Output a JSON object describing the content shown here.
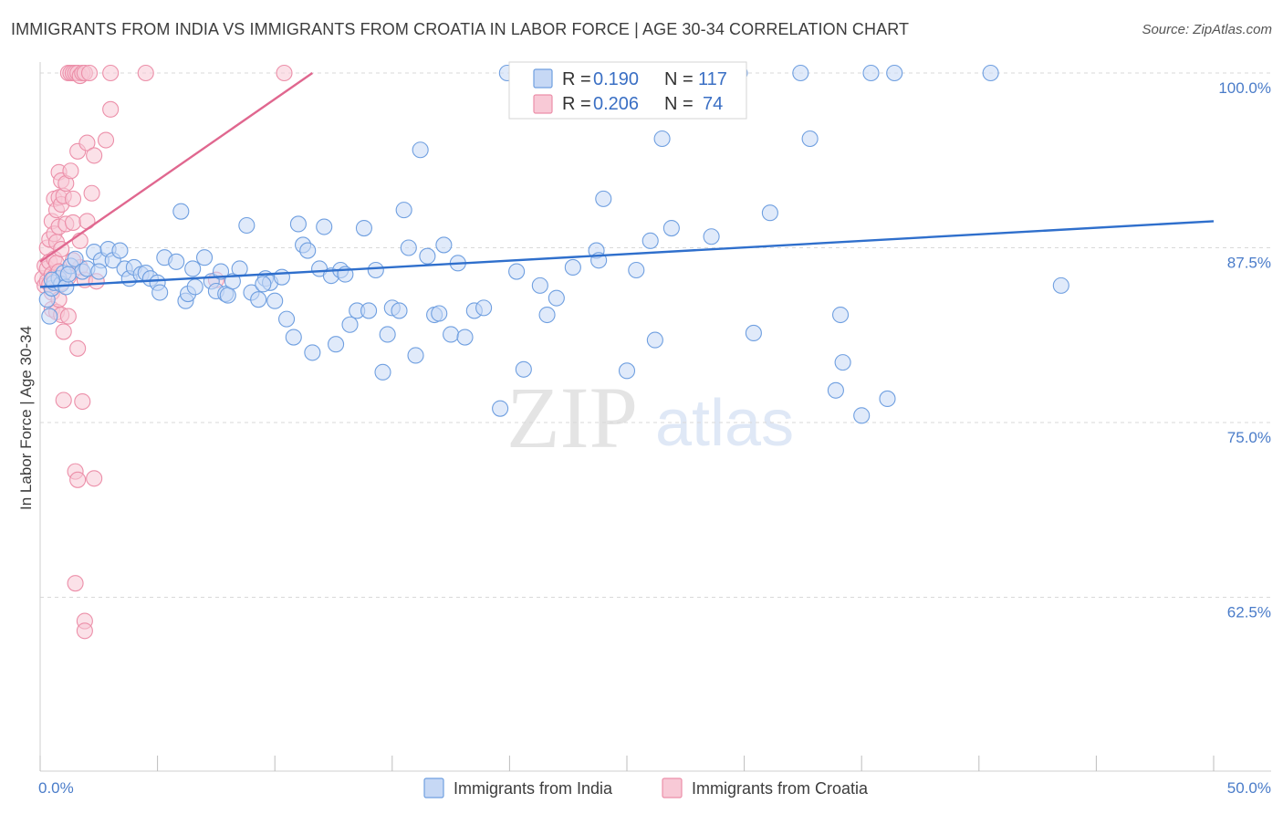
{
  "title": "IMMIGRANTS FROM INDIA VS IMMIGRANTS FROM CROATIA IN LABOR FORCE | AGE 30-34 CORRELATION CHART",
  "source": "Source: ZipAtlas.com",
  "watermark": {
    "zip": "ZIP",
    "atlas": "atlas"
  },
  "colors": {
    "india_fill": "#c6d8f5",
    "india_stroke": "#6f9fe0",
    "india_line": "#2f6fcc",
    "croatia_fill": "#f8c9d6",
    "croatia_stroke": "#ec8fa9",
    "croatia_line": "#e0678f",
    "grid": "#d9d9d9",
    "axis_label": "#4a7cc9"
  },
  "legend": {
    "rows": [
      {
        "r_label": "R =",
        "r_value": "0.190",
        "n_label": "N =",
        "n_value": "117"
      },
      {
        "r_label": "R =",
        "r_value": "0.206",
        "n_label": "N =",
        "n_value": "74"
      }
    ],
    "bottom": [
      "Immigrants from India",
      "Immigrants from Croatia"
    ]
  },
  "chart_data": {
    "type": "scatter",
    "title": "IMMIGRANTS FROM INDIA VS IMMIGRANTS FROM CROATIA IN LABOR FORCE | AGE 30-34 CORRELATION CHART",
    "xlabel": "",
    "ylabel": "In Labor Force | Age 30-34",
    "xlim": [
      0,
      50
    ],
    "ylim": [
      50,
      101
    ],
    "x_tick_labels": [
      "0.0%",
      "50.0%"
    ],
    "y_ticks": [
      62.5,
      75.0,
      87.5,
      100.0
    ],
    "y_tick_labels": [
      "62.5%",
      "75.0%",
      "87.5%",
      "100.0%"
    ],
    "grid": true,
    "legend_position": "top-center",
    "series": [
      {
        "name": "Immigrants from India",
        "R": 0.19,
        "N": 117,
        "trend": {
          "x": [
            0,
            50
          ],
          "y": [
            84.7,
            89.4
          ]
        },
        "points": [
          [
            0.3,
            83.8
          ],
          [
            0.4,
            82.6
          ],
          [
            0.5,
            84.6
          ],
          [
            0.6,
            85.0
          ],
          [
            0.8,
            85.3
          ],
          [
            0.9,
            84.9
          ],
          [
            1.0,
            85.7
          ],
          [
            1.1,
            84.7
          ],
          [
            1.3,
            86.2
          ],
          [
            1.5,
            86.7
          ],
          [
            1.8,
            85.8
          ],
          [
            2.0,
            86.0
          ],
          [
            2.3,
            87.2
          ],
          [
            2.6,
            86.6
          ],
          [
            2.9,
            87.4
          ],
          [
            3.1,
            86.6
          ],
          [
            3.4,
            87.3
          ],
          [
            3.6,
            86.0
          ],
          [
            3.8,
            85.3
          ],
          [
            4.0,
            86.1
          ],
          [
            4.3,
            85.6
          ],
          [
            4.5,
            85.7
          ],
          [
            4.7,
            85.3
          ],
          [
            5.0,
            85.0
          ],
          [
            5.1,
            84.3
          ],
          [
            5.3,
            86.8
          ],
          [
            5.8,
            86.5
          ],
          [
            6.0,
            90.1
          ],
          [
            6.2,
            83.7
          ],
          [
            6.3,
            84.2
          ],
          [
            6.5,
            86.0
          ],
          [
            6.6,
            84.7
          ],
          [
            7.0,
            86.8
          ],
          [
            7.3,
            85.1
          ],
          [
            7.5,
            84.4
          ],
          [
            7.7,
            85.8
          ],
          [
            7.9,
            84.2
          ],
          [
            8.0,
            84.1
          ],
          [
            8.2,
            85.1
          ],
          [
            8.5,
            86.0
          ],
          [
            8.8,
            89.1
          ],
          [
            9.0,
            84.3
          ],
          [
            9.3,
            83.8
          ],
          [
            9.6,
            85.3
          ],
          [
            9.8,
            85.0
          ],
          [
            10.0,
            83.7
          ],
          [
            10.3,
            85.4
          ],
          [
            10.5,
            82.4
          ],
          [
            10.8,
            81.1
          ],
          [
            11.0,
            89.2
          ],
          [
            11.2,
            87.7
          ],
          [
            11.4,
            87.3
          ],
          [
            11.6,
            80.0
          ],
          [
            11.9,
            86.0
          ],
          [
            12.1,
            89.0
          ],
          [
            12.4,
            85.5
          ],
          [
            12.6,
            80.6
          ],
          [
            12.8,
            85.9
          ],
          [
            13.0,
            85.6
          ],
          [
            13.2,
            82.0
          ],
          [
            13.5,
            83.0
          ],
          [
            13.8,
            88.9
          ],
          [
            14.0,
            83.0
          ],
          [
            14.3,
            85.9
          ],
          [
            14.6,
            78.6
          ],
          [
            14.8,
            81.3
          ],
          [
            15.0,
            83.2
          ],
          [
            15.3,
            83.0
          ],
          [
            15.5,
            90.2
          ],
          [
            15.7,
            87.5
          ],
          [
            16.0,
            79.8
          ],
          [
            16.2,
            94.5
          ],
          [
            16.5,
            86.9
          ],
          [
            16.8,
            82.7
          ],
          [
            17.0,
            82.8
          ],
          [
            17.2,
            87.7
          ],
          [
            17.5,
            81.3
          ],
          [
            17.8,
            86.4
          ],
          [
            18.1,
            81.1
          ],
          [
            18.5,
            83.0
          ],
          [
            18.9,
            83.2
          ],
          [
            19.6,
            76.0
          ],
          [
            19.9,
            100.0
          ],
          [
            20.3,
            85.8
          ],
          [
            20.6,
            78.8
          ],
          [
            21.3,
            84.8
          ],
          [
            21.6,
            82.7
          ],
          [
            22.0,
            83.9
          ],
          [
            22.7,
            86.1
          ],
          [
            23.7,
            87.3
          ],
          [
            23.8,
            86.6
          ],
          [
            24.0,
            91.0
          ],
          [
            25.0,
            78.7
          ],
          [
            25.4,
            85.9
          ],
          [
            26.0,
            88.0
          ],
          [
            26.2,
            80.9
          ],
          [
            26.5,
            95.3
          ],
          [
            26.9,
            88.9
          ],
          [
            28.6,
            88.3
          ],
          [
            29.8,
            100.0
          ],
          [
            30.4,
            81.4
          ],
          [
            31.1,
            90.0
          ],
          [
            32.4,
            100.0
          ],
          [
            32.8,
            95.3
          ],
          [
            33.9,
            77.3
          ],
          [
            34.1,
            82.7
          ],
          [
            34.2,
            79.3
          ],
          [
            35.0,
            75.5
          ],
          [
            35.4,
            100.0
          ],
          [
            36.1,
            76.7
          ],
          [
            36.4,
            100.0
          ],
          [
            40.5,
            100.0
          ],
          [
            43.5,
            84.8
          ],
          [
            0.5,
            85.2
          ],
          [
            1.2,
            85.6
          ],
          [
            2.5,
            85.8
          ],
          [
            9.5,
            84.9
          ]
        ]
      },
      {
        "name": "Immigrants from Croatia",
        "R": 0.206,
        "N": 74,
        "trend": {
          "x": [
            0,
            11.6
          ],
          "y": [
            86.5,
            100.0
          ]
        },
        "points": [
          [
            0.1,
            85.3
          ],
          [
            0.2,
            86.2
          ],
          [
            0.2,
            84.8
          ],
          [
            0.3,
            87.5
          ],
          [
            0.3,
            86.0
          ],
          [
            0.3,
            85.1
          ],
          [
            0.4,
            88.1
          ],
          [
            0.4,
            86.5
          ],
          [
            0.4,
            84.9
          ],
          [
            0.5,
            89.4
          ],
          [
            0.5,
            85.6
          ],
          [
            0.5,
            84.3
          ],
          [
            0.5,
            83.1
          ],
          [
            0.6,
            91.0
          ],
          [
            0.6,
            88.5
          ],
          [
            0.6,
            86.7
          ],
          [
            0.6,
            85.4
          ],
          [
            0.7,
            90.2
          ],
          [
            0.7,
            87.9
          ],
          [
            0.7,
            86.4
          ],
          [
            0.7,
            82.9
          ],
          [
            0.8,
            92.9
          ],
          [
            0.8,
            91.1
          ],
          [
            0.8,
            89.0
          ],
          [
            0.8,
            85.8
          ],
          [
            0.8,
            83.8
          ],
          [
            0.9,
            92.3
          ],
          [
            0.9,
            90.6
          ],
          [
            0.9,
            87.4
          ],
          [
            0.9,
            85.0
          ],
          [
            0.9,
            82.7
          ],
          [
            1.0,
            91.2
          ],
          [
            1.0,
            81.5
          ],
          [
            1.0,
            76.6
          ],
          [
            1.1,
            92.1
          ],
          [
            1.1,
            89.2
          ],
          [
            1.2,
            100.0
          ],
          [
            1.2,
            85.4
          ],
          [
            1.2,
            82.6
          ],
          [
            1.3,
            100.0
          ],
          [
            1.3,
            93.0
          ],
          [
            1.4,
            100.0
          ],
          [
            1.4,
            91.0
          ],
          [
            1.4,
            89.3
          ],
          [
            1.5,
            100.0
          ],
          [
            1.5,
            71.5
          ],
          [
            1.5,
            63.5
          ],
          [
            1.6,
            100.0
          ],
          [
            1.6,
            94.4
          ],
          [
            1.6,
            80.3
          ],
          [
            1.6,
            70.9
          ],
          [
            1.7,
            99.8
          ],
          [
            1.7,
            88.0
          ],
          [
            1.7,
            86.1
          ],
          [
            1.8,
            100.0
          ],
          [
            1.8,
            76.5
          ],
          [
            1.9,
            100.0
          ],
          [
            1.9,
            85.2
          ],
          [
            1.9,
            60.8
          ],
          [
            1.9,
            60.1
          ],
          [
            2.0,
            89.4
          ],
          [
            2.0,
            95.0
          ],
          [
            2.1,
            100.0
          ],
          [
            2.2,
            91.4
          ],
          [
            2.3,
            71.0
          ],
          [
            2.3,
            94.1
          ],
          [
            2.4,
            85.1
          ],
          [
            2.8,
            95.2
          ],
          [
            3.0,
            97.4
          ],
          [
            3.0,
            100.0
          ],
          [
            4.5,
            100.0
          ],
          [
            7.5,
            85.2
          ],
          [
            10.4,
            100.0
          ],
          [
            1.4,
            86.6
          ]
        ]
      }
    ]
  }
}
